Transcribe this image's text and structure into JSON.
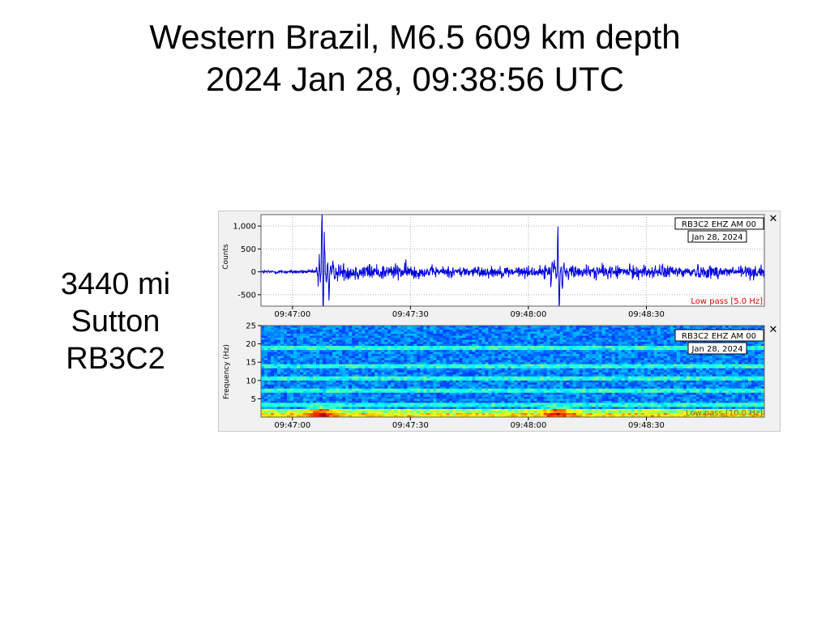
{
  "title": {
    "line1": "Western Brazil, M6.5 609 km depth",
    "line2": "2024 Jan 28, 09:38:56 UTC"
  },
  "station": {
    "distance": "3440 mi",
    "name": "Sutton",
    "code": "RB3C2"
  },
  "icons": {
    "close": "close-icon"
  },
  "colors": {
    "trace": "#0000dd",
    "filter_label": "#dd0000",
    "spectrogram_low": "#00008b",
    "spectrogram_high": "#ffff00"
  },
  "chart_data": [
    {
      "type": "line",
      "ylabel": "Counts",
      "channel_label": "RB3C2 EHZ AM 00",
      "date_label": "Jan 28, 2024",
      "filter_label": "Low pass [5.0 Hz]",
      "x_tick_labels": [
        "09:47:00",
        "09:47:30",
        "09:48:00",
        "09:48:30"
      ],
      "x_tick_seconds": [
        8,
        38,
        68,
        98
      ],
      "xlim": [
        0,
        128
      ],
      "y_ticks": [
        -500,
        0,
        500,
        1000
      ],
      "y_tick_labels": [
        "-500",
        "0",
        "500",
        "1,000"
      ],
      "ylim": [
        -750,
        1250
      ],
      "grid": true,
      "events": [
        {
          "t": 15.5,
          "amplitude": 1180
        },
        {
          "t": 15.8,
          "amplitude": -900
        },
        {
          "t": 16.1,
          "amplitude": 700
        },
        {
          "t": 17.3,
          "amplitude": -420
        },
        {
          "t": 75.5,
          "amplitude": 870
        },
        {
          "t": 75.8,
          "amplitude": -760
        },
        {
          "t": 74.5,
          "amplitude": 450
        },
        {
          "t": 76.6,
          "amplitude": -350
        }
      ]
    },
    {
      "type": "heatmap",
      "ylabel": "Frequency (Hz)",
      "channel_label": "RB3C2 EHZ AM 00",
      "date_label": "Jan 28, 2024",
      "filter_label": "Low pass [10.0 Hz]",
      "x_tick_labels": [
        "09:47:00",
        "09:47:30",
        "09:48:00",
        "09:48:30"
      ],
      "x_tick_seconds": [
        8,
        38,
        68,
        98
      ],
      "xlim": [
        0,
        128
      ],
      "y_ticks": [
        5,
        10,
        15,
        20,
        25
      ],
      "y_tick_labels": [
        "5",
        "10",
        "15",
        "20",
        "25"
      ],
      "ylim": [
        0,
        25
      ],
      "bright_bands_hz": [
        3.5,
        7.2,
        10.5,
        14.0,
        18.8
      ],
      "low_freq_energy_hz": [
        0,
        2.5
      ],
      "hot_spots_seconds": [
        15.5,
        75.5
      ]
    }
  ]
}
